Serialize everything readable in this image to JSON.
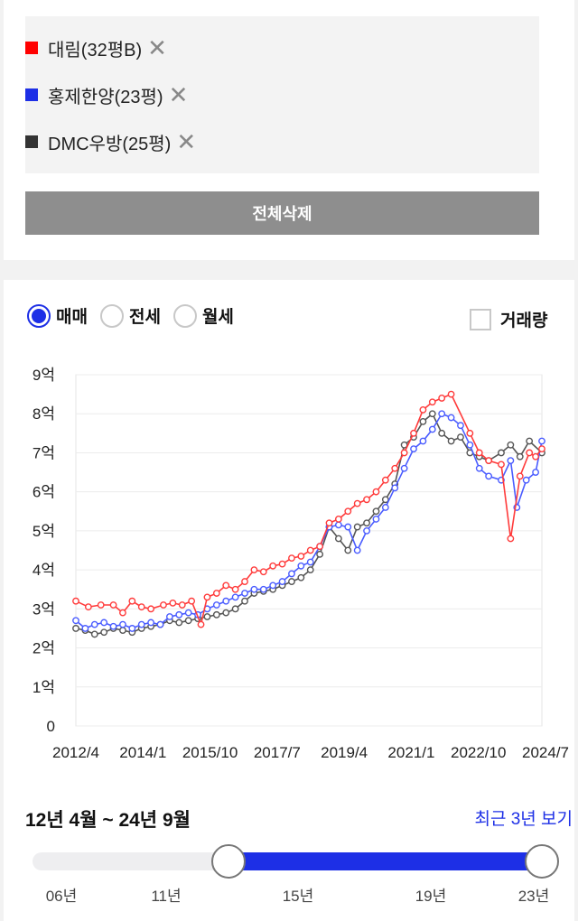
{
  "compare": {
    "items": [
      {
        "label": "대림(32평B)",
        "color": "#ff0000",
        "remove": "✕"
      },
      {
        "label": "홍제한양(23평)",
        "color": "#1d2fe6",
        "remove": "✕"
      },
      {
        "label": "DMC우방(25평)",
        "color": "#333333",
        "remove": "✕"
      }
    ],
    "delete_all_label": "전체삭제"
  },
  "tabs": {
    "options": [
      {
        "label": "매매",
        "selected": true
      },
      {
        "label": "전세",
        "selected": false
      },
      {
        "label": "월세",
        "selected": false
      }
    ],
    "volume_label": "거래량",
    "volume_checked": false
  },
  "chart_data": {
    "type": "line",
    "y_ticks": [
      "0",
      "1억",
      "2억",
      "3억",
      "4억",
      "5억",
      "6억",
      "7억",
      "8억",
      "9억"
    ],
    "ylim": [
      0,
      9
    ],
    "y_unit": "억",
    "x_ticks": [
      "2012/4",
      "2014/1",
      "2015/10",
      "2017/7",
      "2019/4",
      "2021/1",
      "2022/10",
      "2024/7"
    ],
    "xlim": [
      "2012-04",
      "2024-09"
    ],
    "grid": true,
    "series": [
      {
        "name": "대림(32평B)",
        "color": "#ff3b3b",
        "points": [
          [
            "2012-04",
            3.2
          ],
          [
            "2012-08",
            3.05
          ],
          [
            "2012-12",
            3.1
          ],
          [
            "2013-04",
            3.1
          ],
          [
            "2013-07",
            2.9
          ],
          [
            "2013-10",
            3.2
          ],
          [
            "2014-01",
            3.05
          ],
          [
            "2014-04",
            3.0
          ],
          [
            "2014-08",
            3.1
          ],
          [
            "2014-11",
            3.15
          ],
          [
            "2015-02",
            3.1
          ],
          [
            "2015-05",
            3.2
          ],
          [
            "2015-08",
            2.6
          ],
          [
            "2015-10",
            3.3
          ],
          [
            "2016-01",
            3.4
          ],
          [
            "2016-04",
            3.6
          ],
          [
            "2016-07",
            3.5
          ],
          [
            "2016-10",
            3.7
          ],
          [
            "2017-01",
            4.0
          ],
          [
            "2017-04",
            3.95
          ],
          [
            "2017-07",
            4.1
          ],
          [
            "2017-10",
            4.15
          ],
          [
            "2018-01",
            4.3
          ],
          [
            "2018-04",
            4.35
          ],
          [
            "2018-07",
            4.5
          ],
          [
            "2018-10",
            4.6
          ],
          [
            "2019-01",
            5.2
          ],
          [
            "2019-04",
            5.3
          ],
          [
            "2019-07",
            5.5
          ],
          [
            "2019-10",
            5.7
          ],
          [
            "2020-01",
            5.8
          ],
          [
            "2020-04",
            6.0
          ],
          [
            "2020-07",
            6.3
          ],
          [
            "2020-10",
            6.6
          ],
          [
            "2021-01",
            7.0
          ],
          [
            "2021-04",
            7.5
          ],
          [
            "2021-07",
            8.1
          ],
          [
            "2021-10",
            8.3
          ],
          [
            "2022-01",
            8.4
          ],
          [
            "2022-04",
            8.5
          ],
          [
            "2022-10",
            7.5
          ],
          [
            "2023-01",
            7.0
          ],
          [
            "2023-04",
            6.8
          ],
          [
            "2023-08",
            6.7
          ],
          [
            "2023-11",
            4.8
          ],
          [
            "2024-02",
            6.4
          ],
          [
            "2024-05",
            7.0
          ],
          [
            "2024-07",
            6.9
          ],
          [
            "2024-09",
            7.1
          ]
        ]
      },
      {
        "name": "홍제한양(23평)",
        "color": "#4a5cff",
        "points": [
          [
            "2012-04",
            2.7
          ],
          [
            "2012-07",
            2.5
          ],
          [
            "2012-10",
            2.6
          ],
          [
            "2013-01",
            2.65
          ],
          [
            "2013-04",
            2.55
          ],
          [
            "2013-07",
            2.6
          ],
          [
            "2013-10",
            2.5
          ],
          [
            "2014-01",
            2.6
          ],
          [
            "2014-04",
            2.65
          ],
          [
            "2014-07",
            2.6
          ],
          [
            "2014-10",
            2.8
          ],
          [
            "2015-01",
            2.85
          ],
          [
            "2015-04",
            2.9
          ],
          [
            "2015-07",
            2.85
          ],
          [
            "2015-10",
            3.0
          ],
          [
            "2016-01",
            3.1
          ],
          [
            "2016-04",
            3.2
          ],
          [
            "2016-07",
            3.3
          ],
          [
            "2016-10",
            3.4
          ],
          [
            "2017-01",
            3.5
          ],
          [
            "2017-04",
            3.5
          ],
          [
            "2017-07",
            3.6
          ],
          [
            "2017-10",
            3.7
          ],
          [
            "2018-01",
            3.9
          ],
          [
            "2018-04",
            4.1
          ],
          [
            "2018-07",
            4.2
          ],
          [
            "2018-10",
            4.6
          ],
          [
            "2019-01",
            5.1
          ],
          [
            "2019-04",
            5.15
          ],
          [
            "2019-07",
            5.1
          ],
          [
            "2019-10",
            4.5
          ],
          [
            "2020-01",
            5.0
          ],
          [
            "2020-04",
            5.3
          ],
          [
            "2020-07",
            5.6
          ],
          [
            "2020-10",
            6.1
          ],
          [
            "2021-01",
            6.6
          ],
          [
            "2021-04",
            7.1
          ],
          [
            "2021-07",
            7.3
          ],
          [
            "2021-10",
            7.6
          ],
          [
            "2022-01",
            8.0
          ],
          [
            "2022-04",
            7.9
          ],
          [
            "2022-07",
            7.7
          ],
          [
            "2022-10",
            7.2
          ],
          [
            "2023-01",
            6.6
          ],
          [
            "2023-04",
            6.4
          ],
          [
            "2023-08",
            6.3
          ],
          [
            "2023-11",
            6.8
          ],
          [
            "2024-01",
            5.6
          ],
          [
            "2024-04",
            6.3
          ],
          [
            "2024-07",
            6.5
          ],
          [
            "2024-09",
            7.3
          ]
        ]
      },
      {
        "name": "DMC우방(25평)",
        "color": "#555555",
        "points": [
          [
            "2012-04",
            2.5
          ],
          [
            "2012-07",
            2.45
          ],
          [
            "2012-10",
            2.35
          ],
          [
            "2013-01",
            2.4
          ],
          [
            "2013-04",
            2.5
          ],
          [
            "2013-07",
            2.45
          ],
          [
            "2013-10",
            2.4
          ],
          [
            "2014-01",
            2.5
          ],
          [
            "2014-04",
            2.55
          ],
          [
            "2014-07",
            2.6
          ],
          [
            "2014-10",
            2.7
          ],
          [
            "2015-01",
            2.65
          ],
          [
            "2015-04",
            2.7
          ],
          [
            "2015-07",
            2.75
          ],
          [
            "2015-10",
            2.8
          ],
          [
            "2016-01",
            2.85
          ],
          [
            "2016-04",
            2.9
          ],
          [
            "2016-07",
            3.0
          ],
          [
            "2016-10",
            3.2
          ],
          [
            "2017-01",
            3.4
          ],
          [
            "2017-04",
            3.45
          ],
          [
            "2017-07",
            3.5
          ],
          [
            "2017-10",
            3.6
          ],
          [
            "2018-01",
            3.7
          ],
          [
            "2018-04",
            3.8
          ],
          [
            "2018-07",
            4.0
          ],
          [
            "2018-10",
            4.4
          ],
          [
            "2019-01",
            5.1
          ],
          [
            "2019-04",
            4.8
          ],
          [
            "2019-07",
            4.5
          ],
          [
            "2019-10",
            5.1
          ],
          [
            "2020-01",
            5.2
          ],
          [
            "2020-04",
            5.5
          ],
          [
            "2020-07",
            5.8
          ],
          [
            "2020-10",
            6.2
          ],
          [
            "2021-01",
            7.2
          ],
          [
            "2021-04",
            7.4
          ],
          [
            "2021-07",
            7.8
          ],
          [
            "2021-10",
            8.0
          ],
          [
            "2022-01",
            7.5
          ],
          [
            "2022-04",
            7.3
          ],
          [
            "2022-07",
            7.4
          ],
          [
            "2022-10",
            7.0
          ],
          [
            "2023-01",
            6.9
          ],
          [
            "2023-04",
            6.8
          ],
          [
            "2023-08",
            7.0
          ],
          [
            "2023-11",
            7.2
          ],
          [
            "2024-02",
            6.9
          ],
          [
            "2024-05",
            7.3
          ],
          [
            "2024-09",
            7.0
          ]
        ]
      }
    ]
  },
  "range": {
    "label": "12년 4월 ~ 24년 9월",
    "recent_link": "최근 3년 보기",
    "ticks": [
      "06년",
      "11년",
      "15년",
      "19년",
      "23년"
    ],
    "start_frac": 0.38,
    "end_frac": 1.0,
    "accent": "#1d2fe6"
  }
}
